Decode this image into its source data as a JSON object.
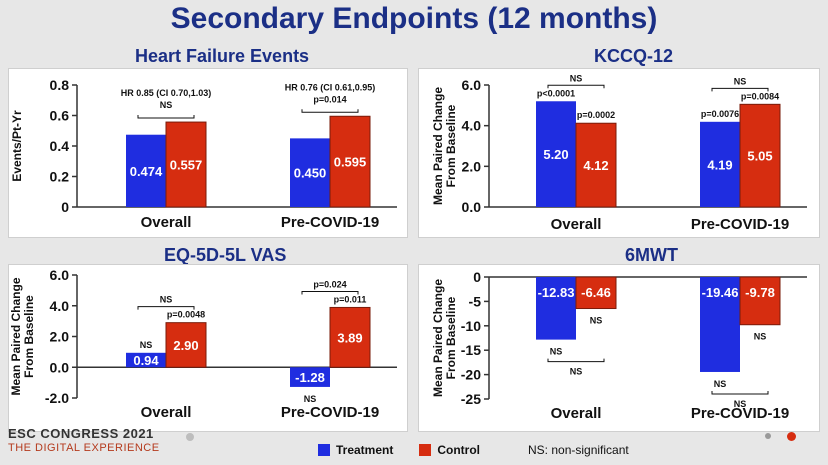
{
  "slide": {
    "title": "Secondary Endpoints (12 months)"
  },
  "colors": {
    "treatment": "#1f2de0",
    "control": "#d62d10",
    "panel_title": "#1b2f86"
  },
  "legend": {
    "treatment": "Treatment",
    "control": "Control",
    "ns_note": "NS: non-significant"
  },
  "footer": {
    "conference": "ESC CONGRESS 2021",
    "subtitle": "THE DIGITAL EXPERIENCE"
  },
  "chart_data": [
    {
      "id": "hf",
      "type": "bar",
      "title": "Heart Failure Events",
      "ylabel": "Events/Pt-Yr",
      "ylim": [
        0,
        0.8
      ],
      "yticks": [
        "0",
        "0.2",
        "0.4",
        "0.6",
        "0.8"
      ],
      "categories": [
        "Overall",
        "Pre-COVID-19"
      ],
      "series": [
        {
          "name": "Treatment",
          "values": [
            0.474,
            0.45
          ],
          "labels": [
            "0.474",
            "0.450"
          ]
        },
        {
          "name": "Control",
          "values": [
            0.557,
            0.595
          ],
          "labels": [
            "0.557",
            "0.595"
          ]
        }
      ],
      "comparisons": [
        {
          "text": "HR 0.85 (CI 0.70,1.03)",
          "sub": "NS"
        },
        {
          "text": "HR 0.76 (CI 0.61,0.95)",
          "sub": "p=0.014"
        }
      ]
    },
    {
      "id": "kccq",
      "type": "bar",
      "title": "KCCQ-12",
      "ylabel": "Mean Paired Change From Baseline",
      "ylim": [
        0,
        6
      ],
      "yticks": [
        "0.0",
        "2.0",
        "4.0",
        "6.0"
      ],
      "categories": [
        "Overall",
        "Pre-COVID-19"
      ],
      "series": [
        {
          "name": "Treatment",
          "values": [
            5.2,
            4.19
          ],
          "labels": [
            "5.20",
            "4.19"
          ],
          "p": [
            "p<0.0001",
            "p=0.0076"
          ]
        },
        {
          "name": "Control",
          "values": [
            4.12,
            5.05
          ],
          "labels": [
            "4.12",
            "5.05"
          ],
          "p": [
            "p=0.0002",
            "p=0.0084"
          ]
        }
      ],
      "comparisons": [
        "NS",
        "NS"
      ]
    },
    {
      "id": "eq5d",
      "type": "bar",
      "title": "EQ-5D-5L VAS",
      "ylabel": "Mean Paired Change From Baseline",
      "ylim": [
        -2,
        6
      ],
      "yticks": [
        "-2.0",
        "0.0",
        "2.0",
        "4.0",
        "6.0"
      ],
      "categories": [
        "Overall",
        "Pre-COVID-19"
      ],
      "series": [
        {
          "name": "Treatment",
          "values": [
            0.94,
            -1.28
          ],
          "labels": [
            "0.94",
            "-1.28"
          ],
          "p": [
            "NS",
            "NS"
          ]
        },
        {
          "name": "Control",
          "values": [
            2.9,
            3.89
          ],
          "labels": [
            "2.90",
            "3.89"
          ],
          "p": [
            "p=0.0048",
            "p=0.011"
          ]
        }
      ],
      "comparisons": [
        "NS",
        "p=0.024"
      ]
    },
    {
      "id": "6mwt",
      "type": "bar",
      "title": "6MWT",
      "ylabel": "Mean Paired Change From Baseline",
      "ylim": [
        -25,
        0
      ],
      "yticks": [
        "-25",
        "-20",
        "-15",
        "-10",
        "-5",
        "0"
      ],
      "categories": [
        "Overall",
        "Pre-COVID-19"
      ],
      "series": [
        {
          "name": "Treatment",
          "values": [
            -12.83,
            -19.46
          ],
          "labels": [
            "-12.83",
            "-19.46"
          ],
          "p": [
            "NS",
            "NS"
          ]
        },
        {
          "name": "Control",
          "values": [
            -6.46,
            -9.78
          ],
          "labels": [
            "-6.46",
            "-9.78"
          ],
          "p": [
            "NS",
            "NS"
          ]
        }
      ],
      "comparisons": [
        "NS",
        "NS"
      ]
    }
  ]
}
